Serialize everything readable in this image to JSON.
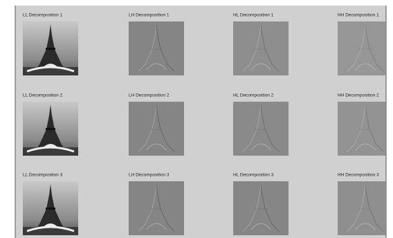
{
  "rows": [
    [
      "LL Decomposition 1",
      "LH Decomposition 1",
      "HL Decomposition 1",
      "HH Decomposition 1"
    ],
    [
      "LL Decomposition 2",
      "LH Decomposition 2",
      "HL Decomposition 2",
      "HH Decomposition 2"
    ],
    [
      "LL Decomposition 3",
      "LH Decomposition 3",
      "HL Decomposition 3",
      "HH Decomposition 3"
    ]
  ]
}
